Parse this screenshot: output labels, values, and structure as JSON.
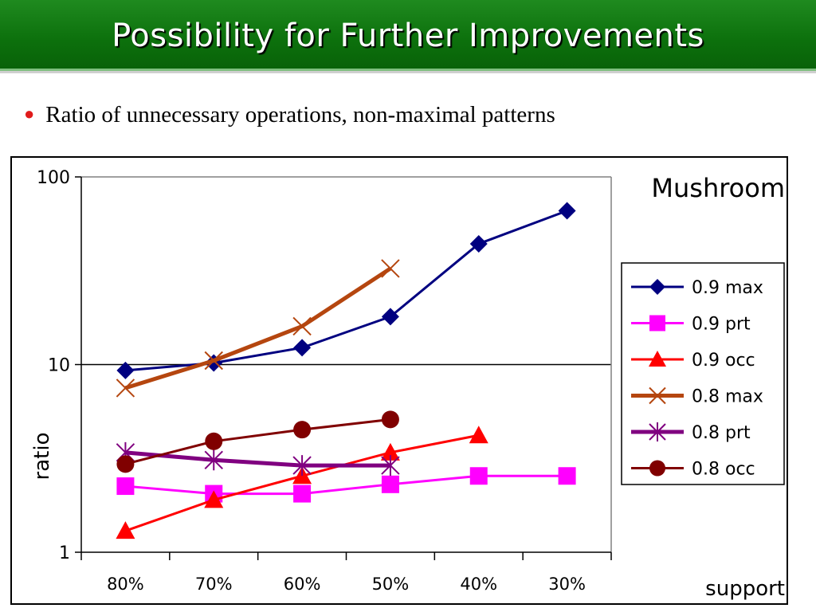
{
  "slide": {
    "title": "Possibility for Further Improvements",
    "bullet": "Ratio of unnecessary operations, non-maximal patterns"
  },
  "chart_data": {
    "type": "line",
    "title": "Mushroom",
    "xlabel": "support",
    "ylabel": "ratio",
    "y_scale": "log",
    "ylim": [
      1,
      100
    ],
    "y_ticks": [
      "1",
      "10",
      "100"
    ],
    "categories": [
      "80%",
      "70%",
      "60%",
      "50%",
      "40%",
      "30%"
    ],
    "legend_position": "right",
    "series": [
      {
        "name": "0.9 max",
        "color": "#000080",
        "marker": "diamond",
        "values": [
          9.3,
          10.2,
          12.3,
          18,
          44,
          66
        ]
      },
      {
        "name": "0.9 prt",
        "color": "#ff00ff",
        "marker": "square",
        "values": [
          2.25,
          2.05,
          2.05,
          2.3,
          2.55,
          2.55
        ]
      },
      {
        "name": "0.9 occ",
        "color": "#ff0000",
        "marker": "triangle",
        "values": [
          1.3,
          1.9,
          2.55,
          3.4,
          4.2,
          null
        ]
      },
      {
        "name": "0.8 max",
        "color": "#b5460f",
        "marker": "x",
        "values": [
          7.5,
          10.5,
          16,
          32.5,
          null,
          null
        ]
      },
      {
        "name": "0.8 prt",
        "color": "#800080",
        "marker": "star",
        "values": [
          3.4,
          3.1,
          2.9,
          2.9,
          null,
          null
        ]
      },
      {
        "name": "0.8 occ",
        "color": "#800000",
        "marker": "circle",
        "values": [
          2.95,
          3.9,
          4.5,
          5.1,
          null,
          null
        ]
      }
    ]
  }
}
